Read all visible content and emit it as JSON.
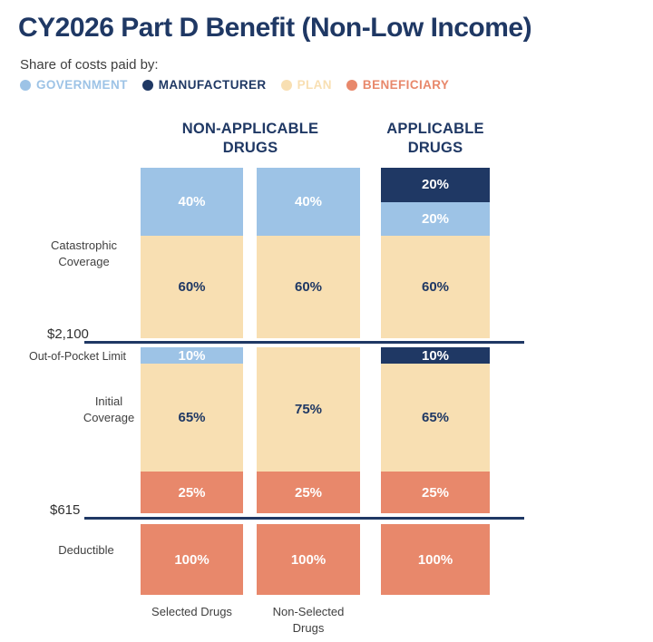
{
  "chart_data": {
    "type": "bar",
    "stacked": true,
    "unit": "percent share of costs",
    "title": "CY2026 Part D Benefit (Non-Low Income)",
    "legend_title": "Share of costs paid by:",
    "legend_position": "top-left",
    "payers": [
      {
        "name": "GOVERNMENT",
        "color": "#9dc3e6",
        "text_color": "#ffffff"
      },
      {
        "name": "MANUFACTURER",
        "color": "#1f3864",
        "text_color": "#ffffff"
      },
      {
        "name": "PLAN",
        "color": "#f8dfb2",
        "text_color": "#1f3864"
      },
      {
        "name": "BENEFICIARY",
        "color": "#e8886b",
        "text_color": "#ffffff"
      }
    ],
    "groups": [
      {
        "label": "NON-APPLICABLE DRUGS",
        "columns": [
          "selected",
          "non_selected"
        ]
      },
      {
        "label": "APPLICABLE DRUGS",
        "columns": [
          "applicable"
        ]
      }
    ],
    "columns": [
      {
        "id": "selected",
        "label": "Selected Drugs",
        "group": "NON-APPLICABLE DRUGS"
      },
      {
        "id": "non_selected",
        "label": "Non-Selected Drugs",
        "group": "NON-APPLICABLE DRUGS"
      },
      {
        "id": "applicable",
        "label": "",
        "group": "APPLICABLE DRUGS"
      }
    ],
    "phases": [
      {
        "id": "catastrophic",
        "label": "Catastrophic Coverage",
        "stacks": {
          "selected": [
            {
              "payer": "GOVERNMENT",
              "pct": 40
            },
            {
              "payer": "PLAN",
              "pct": 60
            }
          ],
          "non_selected": [
            {
              "payer": "GOVERNMENT",
              "pct": 40
            },
            {
              "payer": "PLAN",
              "pct": 60
            }
          ],
          "applicable": [
            {
              "payer": "MANUFACTURER",
              "pct": 20
            },
            {
              "payer": "GOVERNMENT",
              "pct": 20
            },
            {
              "payer": "PLAN",
              "pct": 60
            }
          ]
        }
      },
      {
        "id": "initial",
        "label": "Initial Coverage",
        "stacks": {
          "selected": [
            {
              "payer": "GOVERNMENT",
              "pct": 10
            },
            {
              "payer": "PLAN",
              "pct": 65
            },
            {
              "payer": "BENEFICIARY",
              "pct": 25
            }
          ],
          "non_selected": [
            {
              "payer": "PLAN",
              "pct": 75
            },
            {
              "payer": "BENEFICIARY",
              "pct": 25
            }
          ],
          "applicable": [
            {
              "payer": "MANUFACTURER",
              "pct": 10
            },
            {
              "payer": "PLAN",
              "pct": 65
            },
            {
              "payer": "BENEFICIARY",
              "pct": 25
            }
          ]
        }
      },
      {
        "id": "deductible",
        "label": "Deductible",
        "stacks": {
          "selected": [
            {
              "payer": "BENEFICIARY",
              "pct": 100
            }
          ],
          "non_selected": [
            {
              "payer": "BENEFICIARY",
              "pct": 100
            }
          ],
          "applicable": [
            {
              "payer": "BENEFICIARY",
              "pct": 100
            }
          ]
        }
      }
    ],
    "thresholds": [
      {
        "amount": "$2,100",
        "label": "Out-of-Pocket Limit",
        "position": "between Catastrophic Coverage and Initial Coverage"
      },
      {
        "amount": "$615",
        "label": "",
        "position": "between Initial Coverage and Deductible"
      }
    ],
    "colors": {
      "navy": "#1f3864",
      "light_blue": "#9dc3e6",
      "tan": "#f8dfb2",
      "salmon": "#e8886b",
      "label_gray": "#404040"
    }
  }
}
